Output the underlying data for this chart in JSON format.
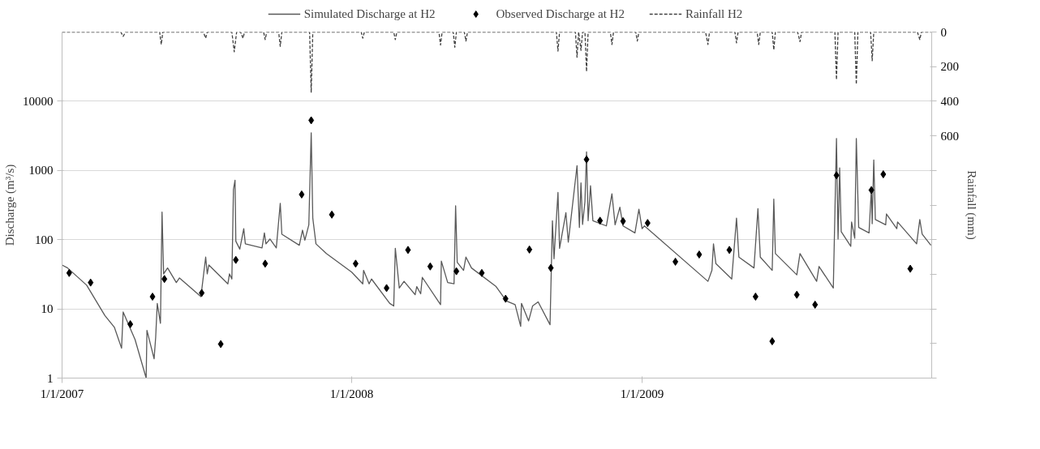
{
  "chart_data": {
    "type": "line",
    "ylabel": "Discharge (m³/s)",
    "y2label": "Rainfall (mm)",
    "log": "y",
    "grid": "y",
    "legend": "top",
    "xlim": [
      "2007-01-01",
      "2010-01-01"
    ],
    "xticks": [
      {
        "value": "2007-01-01",
        "label": "1/1/2007"
      },
      {
        "value": "2008-01-01",
        "label": "1/1/2008"
      },
      {
        "value": "2009-01-01",
        "label": "1/1/2009"
      }
    ],
    "ylim": [
      1,
      100000
    ],
    "yticks": [
      1,
      10,
      100,
      1000,
      10000
    ],
    "y2lim": [
      2000,
      0
    ],
    "y2ticks": [
      0,
      200,
      400,
      600,
      {
        "value": 800,
        "label": null
      },
      {
        "value": 1000,
        "label": null
      },
      {
        "value": 1200,
        "label": null
      },
      {
        "value": 1400,
        "label": null
      },
      {
        "value": 1600,
        "label": null
      },
      {
        "value": 1800,
        "label": null
      },
      {
        "value": 2000,
        "label": null
      }
    ],
    "series": [
      {
        "name": "Simulated Discharge at H2",
        "color": "#595959",
        "line_style": "solid",
        "x": [
          "2007-01-01",
          "2007-01-08",
          "2007-02-01",
          "2007-02-24",
          "2007-03-08",
          "2007-03-17",
          "2007-03-19",
          "2007-04-03",
          "2007-04-17",
          "2007-04-18",
          "2007-04-27",
          "2007-04-29",
          "2007-05-01",
          "2007-05-05",
          "2007-05-07",
          "2007-05-09",
          "2007-05-14",
          "2007-05-25",
          "2007-05-29",
          "2007-06-25",
          "2007-07-01",
          "2007-07-03",
          "2007-07-05",
          "2007-07-29",
          "2007-07-31",
          "2007-08-03",
          "2007-08-05",
          "2007-08-07",
          "2007-08-08",
          "2007-08-13",
          "2007-08-18",
          "2007-08-20",
          "2007-09-10",
          "2007-09-13",
          "2007-09-15",
          "2007-09-20",
          "2007-09-28",
          "2007-10-03",
          "2007-10-05",
          "2007-10-27",
          "2007-10-31",
          "2007-11-03",
          "2007-11-08",
          "2007-11-11",
          "2007-11-13",
          "2007-11-17",
          "2007-11-30",
          "2008-01-01",
          "2008-01-15",
          "2008-01-16",
          "2008-01-23",
          "2008-01-26",
          "2008-02-18",
          "2008-02-23",
          "2008-02-25",
          "2008-03-01",
          "2008-03-07",
          "2008-03-21",
          "2008-03-23",
          "2008-03-28",
          "2008-03-30",
          "2008-04-22",
          "2008-04-23",
          "2008-05-01",
          "2008-05-09",
          "2008-05-11",
          "2008-05-13",
          "2008-05-21",
          "2008-05-24",
          "2008-05-31",
          "2008-07-01",
          "2008-07-14",
          "2008-07-25",
          "2008-08-01",
          "2008-08-02",
          "2008-08-11",
          "2008-08-16",
          "2008-08-23",
          "2008-09-07",
          "2008-09-10",
          "2008-09-12",
          "2008-09-17",
          "2008-09-19",
          "2008-09-27",
          "2008-09-30",
          "2008-10-11",
          "2008-10-14",
          "2008-10-16",
          "2008-10-18",
          "2008-10-21",
          "2008-10-23",
          "2008-10-25",
          "2008-10-28",
          "2008-10-31",
          "2008-11-17",
          "2008-11-24",
          "2008-11-28",
          "2008-12-04",
          "2008-12-08",
          "2008-12-23",
          "2008-12-28",
          "2009-01-01",
          "2009-01-04",
          "2009-03-25",
          "2009-03-30",
          "2009-04-01",
          "2009-04-04",
          "2009-04-24",
          "2009-04-30",
          "2009-05-03",
          "2009-05-22",
          "2009-05-27",
          "2009-05-30",
          "2009-06-14",
          "2009-06-16",
          "2009-06-18",
          "2009-07-15",
          "2009-07-19",
          "2009-08-09",
          "2009-08-12",
          "2009-08-30",
          "2009-09-03",
          "2009-09-05",
          "2009-09-07",
          "2009-09-09",
          "2009-09-21",
          "2009-09-22",
          "2009-09-26",
          "2009-09-28",
          "2009-10-01",
          "2009-10-14",
          "2009-10-17",
          "2009-10-18",
          "2009-10-20",
          "2009-10-22",
          "2009-11-04",
          "2009-11-05",
          "2009-11-18",
          "2009-11-19",
          "2009-12-13",
          "2009-12-17",
          "2009-12-20",
          "2009-12-31"
        ],
        "values": [
          43,
          39,
          22,
          8,
          5.4,
          2.7,
          9,
          3.6,
          1,
          4.9,
          1.9,
          3.9,
          12,
          6.2,
          250,
          32,
          39,
          24,
          28,
          15,
          56,
          32,
          43,
          23,
          32,
          27,
          530,
          720,
          95,
          73,
          144,
          87,
          76,
          125,
          87,
          102,
          76,
          335,
          120,
          83,
          137,
          98,
          164,
          3500,
          205,
          87,
          63,
          34,
          23,
          36,
          23,
          27,
          12,
          11,
          75,
          20,
          25,
          16,
          21,
          16.5,
          28.5,
          11.5,
          49,
          24,
          23,
          308,
          47,
          36,
          56,
          39,
          21,
          13,
          11.5,
          5.6,
          12,
          6.7,
          11,
          12.6,
          5.9,
          188,
          53,
          480,
          75,
          245,
          92,
          1170,
          150,
          660,
          166,
          355,
          1860,
          188,
          600,
          188,
          158,
          460,
          164,
          295,
          158,
          125,
          275,
          144,
          158,
          25,
          36,
          87,
          45,
          27,
          205,
          56,
          39,
          280,
          56,
          36,
          385,
          63,
          31,
          63,
          25,
          41,
          20,
          2900,
          102,
          1090,
          130,
          80,
          180,
          105,
          2900,
          150,
          125,
          550,
          170,
          1420,
          195,
          164,
          235,
          144,
          180,
          87,
          195,
          120,
          83
        ]
      },
      {
        "name": "Observed Discharge at H2",
        "type": "scatter",
        "marker": "diamond",
        "color": "#000000",
        "x": [
          "2007-01-10",
          "2007-02-06",
          "2007-03-28",
          "2007-04-25",
          "2007-05-10",
          "2007-06-26",
          "2007-07-20",
          "2007-08-08",
          "2007-09-14",
          "2007-10-30",
          "2007-11-11",
          "2007-12-07",
          "2008-01-06",
          "2008-02-14",
          "2008-03-12",
          "2008-04-09",
          "2008-05-12",
          "2008-06-13",
          "2008-07-13",
          "2008-08-12",
          "2008-09-08",
          "2008-10-23",
          "2008-11-09",
          "2008-12-08",
          "2009-01-08",
          "2009-02-12",
          "2009-03-14",
          "2009-04-21",
          "2009-05-24",
          "2009-06-14",
          "2009-07-15",
          "2009-08-07",
          "2009-09-03",
          "2009-10-17",
          "2009-11-01",
          "2009-12-05"
        ],
        "values": [
          33,
          24,
          6,
          15,
          27,
          17,
          3.1,
          51,
          45,
          450,
          5300,
          230,
          45,
          20,
          71,
          41,
          35,
          33,
          14,
          72,
          39,
          1440,
          188,
          185,
          174,
          48,
          61,
          71,
          15,
          3.4,
          16,
          11.5,
          850,
          520,
          880,
          38
        ]
      },
      {
        "name": "Rainfall H2",
        "type": "line",
        "axis": "y2",
        "color": "#404040",
        "line_style": "dashed",
        "x": [
          "2007-01-01",
          "2007-03-16",
          "2007-03-19",
          "2007-03-22",
          "2007-05-04",
          "2007-05-06",
          "2007-05-08",
          "2007-06-28",
          "2007-07-01",
          "2007-07-03",
          "2007-08-03",
          "2007-08-06",
          "2007-08-09",
          "2007-08-14",
          "2007-08-17",
          "2007-08-19",
          "2007-09-12",
          "2007-09-14",
          "2007-09-16",
          "2007-10-01",
          "2007-10-03",
          "2007-10-05",
          "2007-11-09",
          "2007-11-11",
          "2007-11-13",
          "2008-01-13",
          "2008-01-15",
          "2008-01-17",
          "2008-02-23",
          "2008-02-25",
          "2008-02-27",
          "2008-04-20",
          "2008-04-22",
          "2008-04-24",
          "2008-05-08",
          "2008-05-10",
          "2008-05-12",
          "2008-05-22",
          "2008-05-24",
          "2008-05-26",
          "2008-09-15",
          "2008-09-17",
          "2008-09-19",
          "2008-10-09",
          "2008-10-11",
          "2008-10-13",
          "2008-10-16",
          "2008-10-18",
          "2008-10-21",
          "2008-10-23",
          "2008-10-25",
          "2008-11-22",
          "2008-11-24",
          "2008-11-26",
          "2008-12-24",
          "2008-12-26",
          "2008-12-28",
          "2009-03-22",
          "2009-03-25",
          "2009-03-27",
          "2009-04-28",
          "2009-04-30",
          "2009-05-02",
          "2009-05-26",
          "2009-05-28",
          "2009-05-30",
          "2009-06-14",
          "2009-06-16",
          "2009-06-18",
          "2009-07-16",
          "2009-07-19",
          "2009-07-21",
          "2009-09-01",
          "2009-09-03",
          "2009-09-05",
          "2009-09-26",
          "2009-09-28",
          "2009-09-30",
          "2009-10-16",
          "2009-10-18",
          "2009-10-20",
          "2009-12-14",
          "2009-12-17",
          "2009-12-19",
          "2009-12-31"
        ],
        "values": [
          0,
          0,
          25,
          0,
          0,
          72,
          0,
          0,
          36,
          0,
          0,
          114,
          0,
          0,
          36,
          0,
          0,
          44,
          0,
          0,
          83,
          0,
          0,
          350,
          0,
          0,
          36,
          0,
          0,
          44,
          0,
          0,
          75,
          0,
          0,
          88,
          0,
          0,
          52,
          0,
          0,
          110,
          0,
          0,
          146,
          0,
          106,
          0,
          0,
          228,
          0,
          0,
          72,
          0,
          0,
          52,
          0,
          0,
          72,
          0,
          0,
          63,
          0,
          0,
          72,
          0,
          0,
          103,
          0,
          0,
          56,
          0,
          0,
          275,
          0,
          0,
          302,
          0,
          0,
          166,
          0,
          0,
          44,
          0,
          0
        ]
      }
    ]
  }
}
